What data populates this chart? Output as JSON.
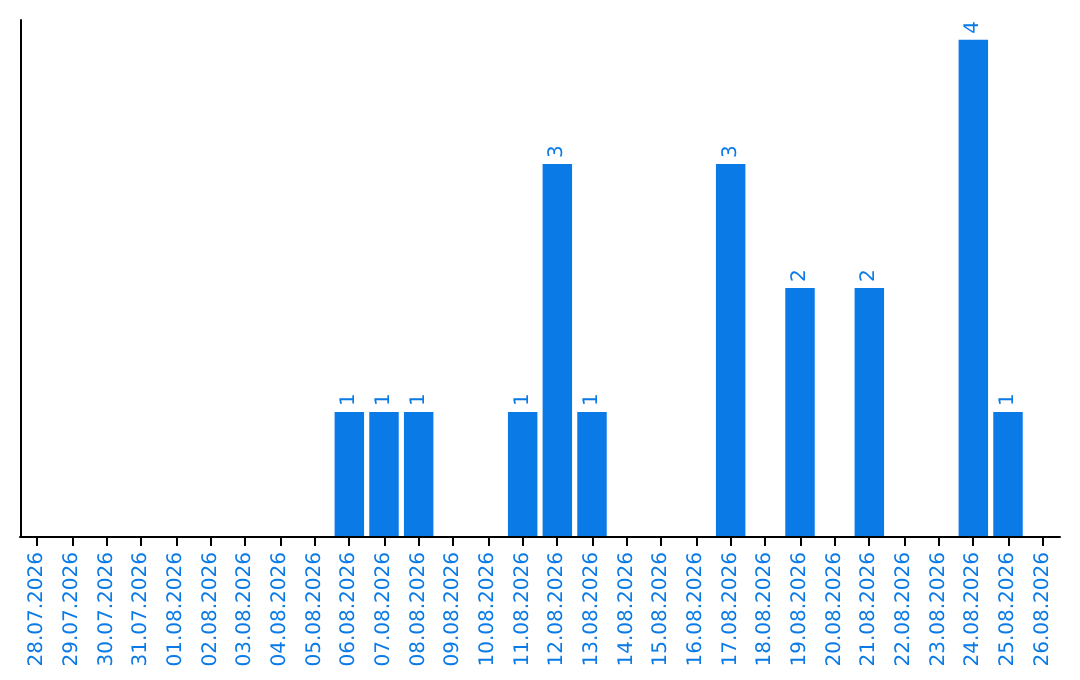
{
  "chart_data": {
    "type": "bar",
    "categories": [
      "28.07.2026",
      "29.07.2026",
      "30.07.2026",
      "31.07.2026",
      "01.08.2026",
      "02.08.2026",
      "03.08.2026",
      "04.08.2026",
      "05.08.2026",
      "06.08.2026",
      "07.08.2026",
      "08.08.2026",
      "09.08.2026",
      "10.08.2026",
      "11.08.2026",
      "12.08.2026",
      "13.08.2026",
      "14.08.2026",
      "15.08.2026",
      "16.08.2026",
      "17.08.2026",
      "18.08.2026",
      "19.08.2026",
      "20.08.2026",
      "21.08.2026",
      "22.08.2026",
      "23.08.2026",
      "24.08.2026",
      "25.08.2026",
      "26.08.2026"
    ],
    "values": [
      null,
      null,
      null,
      null,
      null,
      null,
      null,
      null,
      null,
      1,
      1,
      1,
      null,
      null,
      1,
      3,
      1,
      null,
      null,
      null,
      3,
      null,
      2,
      null,
      2,
      null,
      null,
      4,
      1,
      null
    ],
    "color": "#0a7ae6",
    "data_labels": true,
    "tick_labels": "x",
    "grid": false
  }
}
